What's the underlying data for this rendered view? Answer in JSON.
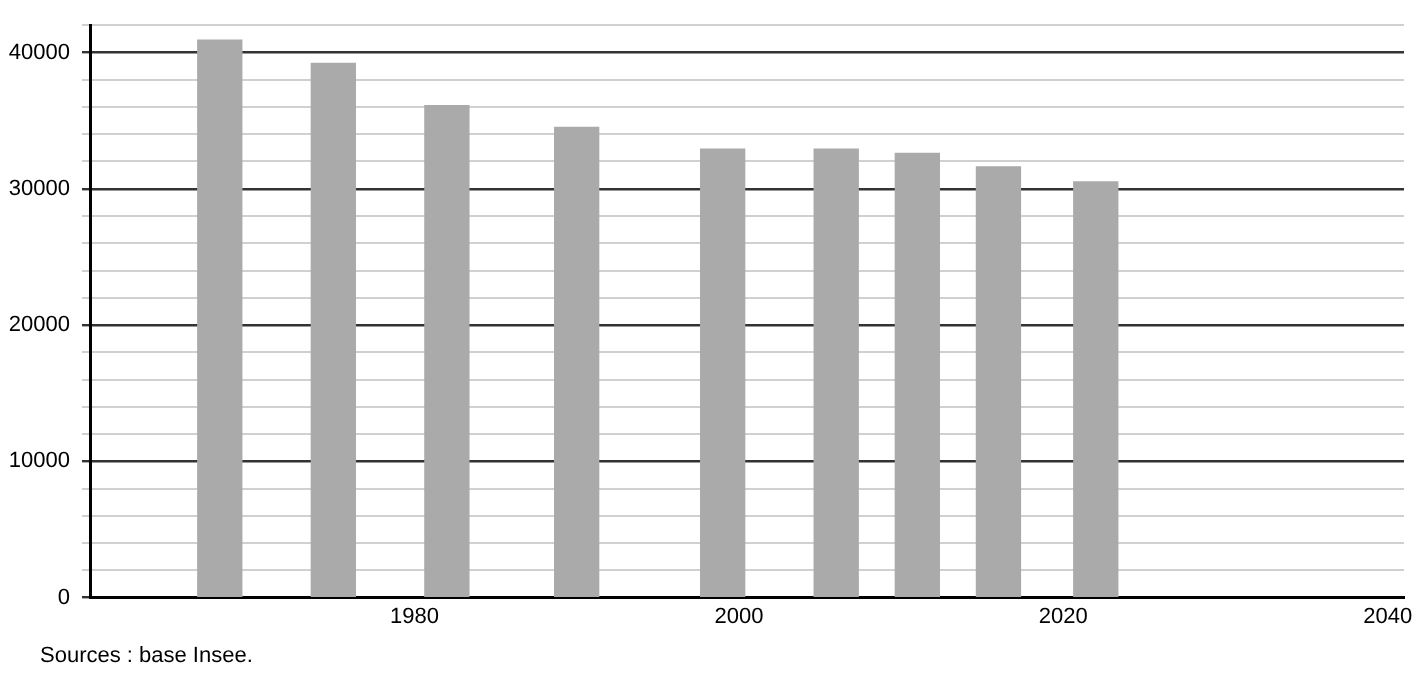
{
  "chart_data": {
    "type": "bar",
    "x": [
      1968,
      1975,
      1982,
      1990,
      1999,
      2006,
      2011,
      2016,
      2022
    ],
    "values": [
      40900,
      39200,
      36100,
      34500,
      32900,
      32900,
      32600,
      31600,
      30500
    ],
    "color": "#aaaaaa",
    "xlim": [
      1960,
      2041
    ],
    "xticks": [
      1980,
      2000,
      2020,
      2040
    ],
    "ylim": [
      0,
      42000
    ],
    "yticks": [
      0,
      {
        "value": 2000,
        "label": null
      },
      {
        "value": 4000,
        "label": null
      },
      {
        "value": 6000,
        "label": null
      },
      {
        "value": 8000,
        "label": null
      },
      10000,
      {
        "value": 12000,
        "label": null
      },
      {
        "value": 14000,
        "label": null
      },
      {
        "value": 16000,
        "label": null
      },
      {
        "value": 18000,
        "label": null
      },
      20000,
      {
        "value": 22000,
        "label": null
      },
      {
        "value": 24000,
        "label": null
      },
      {
        "value": 26000,
        "label": null
      },
      {
        "value": 28000,
        "label": null
      },
      30000,
      {
        "value": 32000,
        "label": null
      },
      {
        "value": 34000,
        "label": null
      },
      {
        "value": 36000,
        "label": null
      },
      {
        "value": 38000,
        "label": null
      },
      40000,
      {
        "value": 42000,
        "label": null
      }
    ],
    "grid": "y",
    "annotations": [
      "Sources : base Insee."
    ]
  }
}
